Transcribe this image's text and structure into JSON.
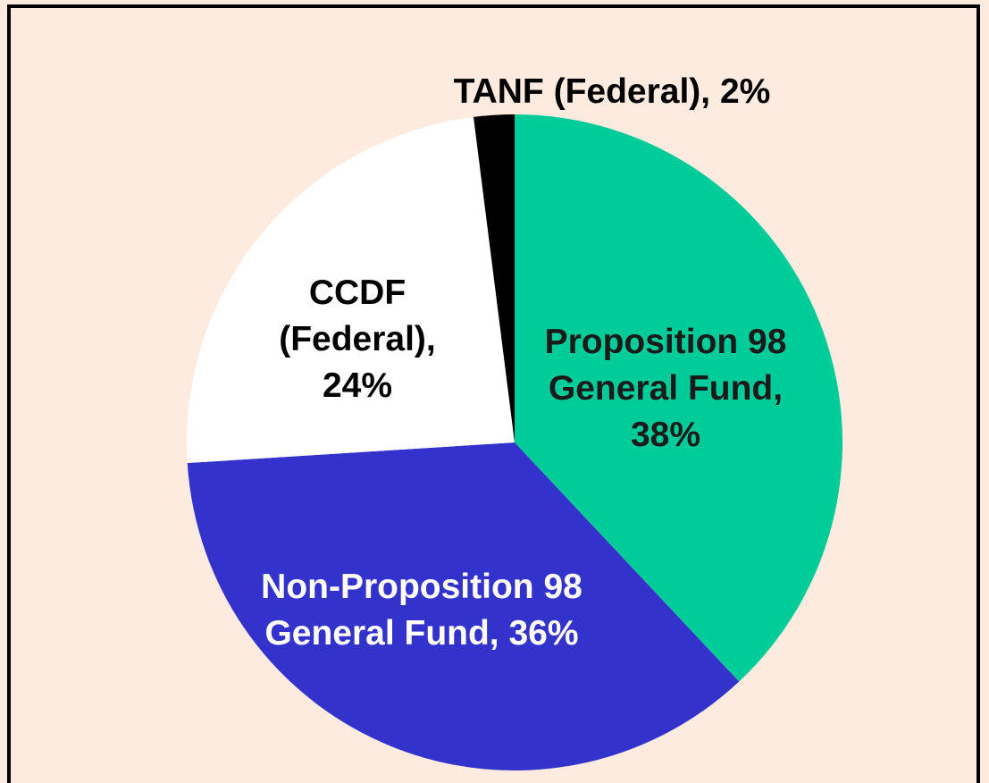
{
  "chart_data": {
    "type": "pie",
    "values": [
      38,
      36,
      24,
      2
    ],
    "value_labels": [
      "Proposition 98 General Fund, 38%",
      "Non-Proposition 98 General Fund, 36%",
      "CCDF (Federal), 24%",
      "TANF (Federal), 2%"
    ],
    "colors": [
      "#00cc99",
      "#3333cc",
      "#ffffff",
      "#000000"
    ],
    "label_colors": [
      "#1a1a1a",
      "#ffffff",
      "#000000",
      "#000000"
    ],
    "start_angle": 0,
    "direction": "clockwise"
  }
}
